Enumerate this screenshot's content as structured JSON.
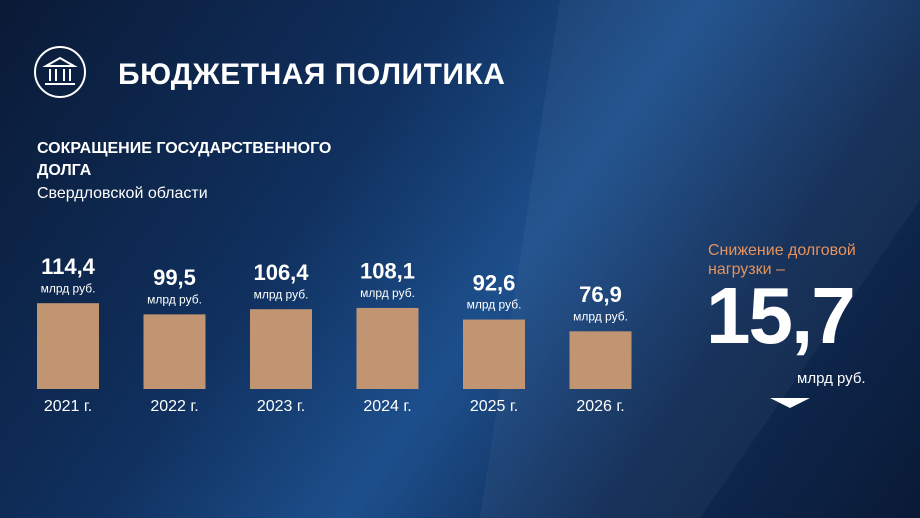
{
  "header": {
    "title": "БЮДЖЕТНАЯ ПОЛИТИКА"
  },
  "chart_data": {
    "type": "bar",
    "title": "СОКРАЩЕНИЕ ГОСУДАРСТВЕННОГО ДОЛГА",
    "subtitle": "Свердловской области",
    "categories": [
      "2021 г.",
      "2022 г.",
      "2023 г.",
      "2024 г.",
      "2025 г.",
      "2026 г."
    ],
    "values": [
      114.4,
      99.5,
      106.4,
      108.1,
      92.6,
      76.9
    ],
    "value_labels": [
      "114,4",
      "99,5",
      "106,4",
      "108,1",
      "92,6",
      "76,9"
    ],
    "unit": "млрд руб.",
    "color": "#c19571"
  },
  "annotation": {
    "text": "Снижение долговой нагрузки –",
    "value": 15.7,
    "value_label": "15,7",
    "unit": "млрд руб."
  }
}
